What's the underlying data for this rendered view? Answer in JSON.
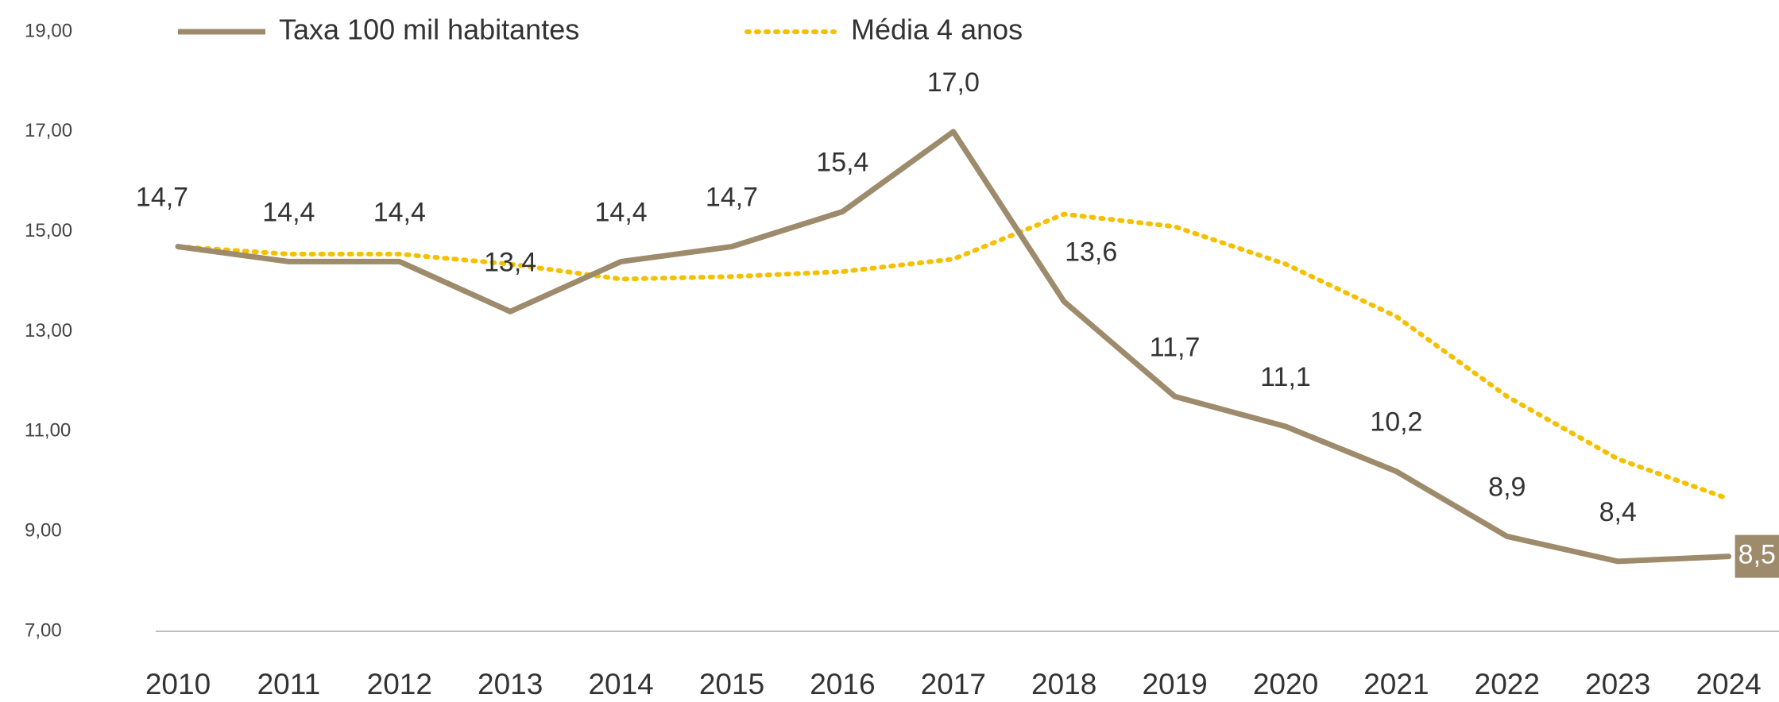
{
  "chart_data": {
    "type": "line",
    "categories": [
      "2010",
      "2011",
      "2012",
      "2013",
      "2014",
      "2015",
      "2016",
      "2017",
      "2018",
      "2019",
      "2020",
      "2021",
      "2022",
      "2023",
      "2024"
    ],
    "series": [
      {
        "name": "Taxa 100 mil habitantes",
        "color": "#9d8b6c",
        "values": [
          14.7,
          14.4,
          14.4,
          13.4,
          14.4,
          14.7,
          15.4,
          17.0,
          13.6,
          11.7,
          11.1,
          10.2,
          8.9,
          8.4,
          8.5
        ],
        "value_labels": [
          "14,7",
          "14,4",
          "14,4",
          "13,4",
          "14,4",
          "14,7",
          "15,4",
          "17,0",
          "13,6",
          "11,7",
          "11,1",
          "10,2",
          "8,9",
          "8,4",
          "8,5"
        ]
      },
      {
        "name": "Média 4 anos",
        "color": "#f5c000",
        "dashed": true,
        "values": [
          14.7,
          14.55,
          14.55,
          14.35,
          14.05,
          14.1,
          14.2,
          14.45,
          15.35,
          15.1,
          14.35,
          13.3,
          11.7,
          10.45,
          9.65
        ]
      }
    ],
    "ylim": [
      7,
      19
    ],
    "yticks": [
      {
        "value": 7,
        "label": "7,00"
      },
      {
        "value": 9,
        "label": "9,00"
      },
      {
        "value": 11,
        "label": "11,00"
      },
      {
        "value": 13,
        "label": "13,00"
      },
      {
        "value": 15,
        "label": "15,00"
      },
      {
        "value": 17,
        "label": "17,00"
      },
      {
        "value": 19,
        "label": "19,00"
      }
    ]
  }
}
